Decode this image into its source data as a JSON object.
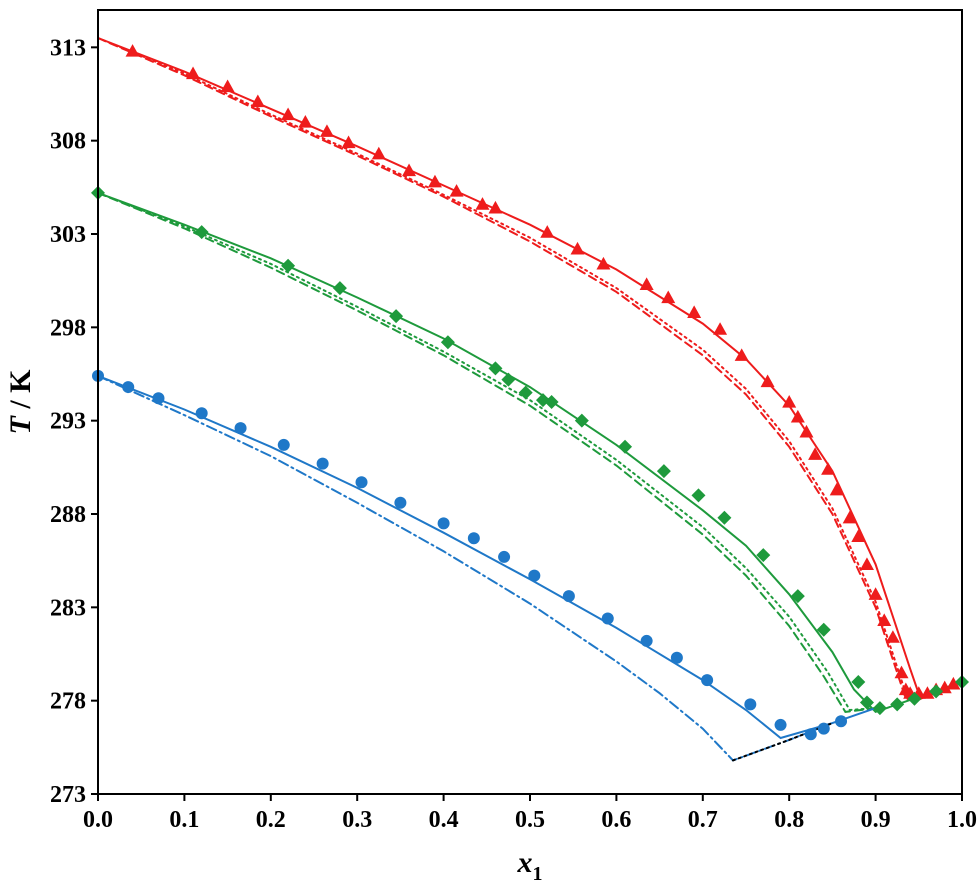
{
  "chart_data": {
    "type": "scatter",
    "xlabel": "x",
    "xlabel_sub": "1",
    "ylabel_italic": "T",
    "ylabel_rest": " / K",
    "xlim": [
      0.0,
      1.0
    ],
    "ylim": [
      273,
      315
    ],
    "xticks": [
      0.0,
      0.1,
      0.2,
      0.3,
      0.4,
      0.5,
      0.6,
      0.7,
      0.8,
      0.9,
      1.0
    ],
    "xtick_labels": [
      "0.0",
      "0.1",
      "0.2",
      "0.3",
      "0.4",
      "0.5",
      "0.6",
      "0.7",
      "0.8",
      "0.9",
      "1.0"
    ],
    "yticks": [
      273,
      278,
      283,
      288,
      293,
      298,
      303,
      308,
      313
    ],
    "ytick_labels": [
      "273",
      "278",
      "283",
      "288",
      "293",
      "298",
      "303",
      "308",
      "313"
    ],
    "grid": false,
    "legend": "none",
    "colors": {
      "red": "#ee1c1c",
      "green": "#1e9a3c",
      "blue": "#1f78c8",
      "black": "#000000"
    },
    "series": [
      {
        "marker": "triangle",
        "color": "#ee1c1c",
        "points": [
          [
            0.04,
            312.8
          ],
          [
            0.11,
            311.6
          ],
          [
            0.15,
            310.9
          ],
          [
            0.185,
            310.1
          ],
          [
            0.22,
            309.4
          ],
          [
            0.24,
            309.0
          ],
          [
            0.265,
            308.5
          ],
          [
            0.29,
            307.9
          ],
          [
            0.325,
            307.3
          ],
          [
            0.36,
            306.4
          ],
          [
            0.39,
            305.8
          ],
          [
            0.415,
            305.3
          ],
          [
            0.445,
            304.6
          ],
          [
            0.46,
            304.4
          ],
          [
            0.52,
            303.1
          ],
          [
            0.555,
            302.2
          ],
          [
            0.585,
            301.4
          ],
          [
            0.635,
            300.3
          ],
          [
            0.66,
            299.6
          ],
          [
            0.69,
            298.8
          ],
          [
            0.72,
            297.9
          ],
          [
            0.745,
            296.5
          ],
          [
            0.775,
            295.1
          ],
          [
            0.8,
            294.0
          ],
          [
            0.81,
            293.2
          ],
          [
            0.82,
            292.4
          ],
          [
            0.83,
            291.2
          ],
          [
            0.845,
            290.4
          ],
          [
            0.855,
            289.3
          ],
          [
            0.87,
            287.8
          ],
          [
            0.88,
            286.8
          ],
          [
            0.89,
            285.3
          ],
          [
            0.9,
            283.7
          ],
          [
            0.91,
            282.3
          ],
          [
            0.92,
            281.4
          ],
          [
            0.93,
            279.5
          ],
          [
            0.935,
            278.6
          ],
          [
            0.94,
            278.4
          ],
          [
            0.95,
            278.4
          ],
          [
            0.96,
            278.4
          ],
          [
            0.97,
            278.6
          ],
          [
            0.98,
            278.7
          ],
          [
            0.99,
            278.9
          ]
        ]
      },
      {
        "marker": "diamond",
        "color": "#1e9a3c",
        "points": [
          [
            0.0,
            305.2
          ],
          [
            0.12,
            303.1
          ],
          [
            0.22,
            301.3
          ],
          [
            0.28,
            300.1
          ],
          [
            0.345,
            298.6
          ],
          [
            0.405,
            297.2
          ],
          [
            0.46,
            295.8
          ],
          [
            0.475,
            295.2
          ],
          [
            0.495,
            294.5
          ],
          [
            0.515,
            294.1
          ],
          [
            0.525,
            294.0
          ],
          [
            0.56,
            293.0
          ],
          [
            0.61,
            291.6
          ],
          [
            0.655,
            290.3
          ],
          [
            0.695,
            289.0
          ],
          [
            0.725,
            287.8
          ],
          [
            0.77,
            285.8
          ],
          [
            0.81,
            283.6
          ],
          [
            0.84,
            281.8
          ],
          [
            0.88,
            279.0
          ],
          [
            0.89,
            277.9
          ],
          [
            0.905,
            277.6
          ],
          [
            0.925,
            277.8
          ],
          [
            0.945,
            278.1
          ],
          [
            0.97,
            278.5
          ],
          [
            1.0,
            279.0
          ]
        ]
      },
      {
        "marker": "circle",
        "color": "#1f78c8",
        "points": [
          [
            0.0,
            295.4
          ],
          [
            0.035,
            294.8
          ],
          [
            0.07,
            294.2
          ],
          [
            0.12,
            293.4
          ],
          [
            0.165,
            292.6
          ],
          [
            0.215,
            291.7
          ],
          [
            0.26,
            290.7
          ],
          [
            0.305,
            289.7
          ],
          [
            0.35,
            288.6
          ],
          [
            0.4,
            287.5
          ],
          [
            0.435,
            286.7
          ],
          [
            0.47,
            285.7
          ],
          [
            0.505,
            284.7
          ],
          [
            0.545,
            283.6
          ],
          [
            0.59,
            282.4
          ],
          [
            0.635,
            281.2
          ],
          [
            0.67,
            280.3
          ],
          [
            0.705,
            279.1
          ],
          [
            0.755,
            277.8
          ],
          [
            0.79,
            276.7
          ],
          [
            0.825,
            276.2
          ],
          [
            0.84,
            276.5
          ],
          [
            0.86,
            276.9
          ]
        ]
      }
    ],
    "model_curves": [
      {
        "color": "#ee1c1c",
        "dash": "solid",
        "points": [
          [
            0.0,
            313.5
          ],
          [
            0.1,
            311.7
          ],
          [
            0.2,
            309.7
          ],
          [
            0.3,
            307.7
          ],
          [
            0.4,
            305.6
          ],
          [
            0.5,
            303.5
          ],
          [
            0.6,
            301.1
          ],
          [
            0.7,
            298.2
          ],
          [
            0.75,
            296.3
          ],
          [
            0.8,
            293.8
          ],
          [
            0.85,
            290.3
          ],
          [
            0.9,
            285.3
          ],
          [
            0.94,
            279.7
          ],
          [
            0.952,
            278.1
          ],
          [
            0.97,
            278.5
          ],
          [
            1.0,
            279.0
          ]
        ]
      },
      {
        "color": "#ee1c1c",
        "dash": "dashed",
        "points": [
          [
            0.0,
            313.5
          ],
          [
            0.1,
            311.5
          ],
          [
            0.2,
            309.3
          ],
          [
            0.3,
            307.2
          ],
          [
            0.4,
            305.0
          ],
          [
            0.5,
            302.6
          ],
          [
            0.6,
            299.9
          ],
          [
            0.7,
            296.5
          ],
          [
            0.75,
            294.4
          ],
          [
            0.8,
            291.6
          ],
          [
            0.85,
            288.0
          ],
          [
            0.9,
            283.0
          ],
          [
            0.935,
            278.1
          ],
          [
            0.95,
            278.3
          ]
        ]
      },
      {
        "color": "#ee1c1c",
        "dash": "dotted",
        "points": [
          [
            0.0,
            313.5
          ],
          [
            0.1,
            311.6
          ],
          [
            0.2,
            309.4
          ],
          [
            0.3,
            307.3
          ],
          [
            0.4,
            305.1
          ],
          [
            0.5,
            302.8
          ],
          [
            0.6,
            300.1
          ],
          [
            0.7,
            296.8
          ],
          [
            0.75,
            294.7
          ],
          [
            0.8,
            291.9
          ],
          [
            0.85,
            288.3
          ],
          [
            0.9,
            283.3
          ],
          [
            0.937,
            278.1
          ],
          [
            0.95,
            278.3
          ]
        ]
      },
      {
        "color": "#1e9a3c",
        "dash": "solid",
        "points": [
          [
            0.0,
            305.2
          ],
          [
            0.1,
            303.5
          ],
          [
            0.2,
            301.7
          ],
          [
            0.3,
            299.6
          ],
          [
            0.4,
            297.4
          ],
          [
            0.5,
            294.8
          ],
          [
            0.6,
            291.7
          ],
          [
            0.7,
            288.2
          ],
          [
            0.75,
            286.3
          ],
          [
            0.8,
            283.7
          ],
          [
            0.85,
            280.6
          ],
          [
            0.875,
            278.6
          ],
          [
            0.9,
            277.4
          ],
          [
            0.95,
            278.2
          ],
          [
            1.0,
            279.0
          ]
        ]
      },
      {
        "color": "#1e9a3c",
        "dash": "dashed",
        "points": [
          [
            0.0,
            305.2
          ],
          [
            0.1,
            303.3
          ],
          [
            0.2,
            301.2
          ],
          [
            0.3,
            298.9
          ],
          [
            0.4,
            296.5
          ],
          [
            0.5,
            293.8
          ],
          [
            0.6,
            290.6
          ],
          [
            0.7,
            286.9
          ],
          [
            0.75,
            284.7
          ],
          [
            0.8,
            282.0
          ],
          [
            0.84,
            279.3
          ],
          [
            0.865,
            277.4
          ],
          [
            0.9,
            277.6
          ]
        ]
      },
      {
        "color": "#1e9a3c",
        "dash": "dotted",
        "points": [
          [
            0.0,
            305.2
          ],
          [
            0.1,
            303.4
          ],
          [
            0.2,
            301.4
          ],
          [
            0.3,
            299.1
          ],
          [
            0.4,
            296.7
          ],
          [
            0.5,
            294.1
          ],
          [
            0.6,
            290.9
          ],
          [
            0.7,
            287.3
          ],
          [
            0.75,
            285.1
          ],
          [
            0.8,
            282.5
          ],
          [
            0.845,
            279.5
          ],
          [
            0.87,
            277.5
          ],
          [
            0.9,
            277.6
          ]
        ]
      },
      {
        "color": "#1f78c8",
        "dash": "solid",
        "points": [
          [
            0.0,
            295.4
          ],
          [
            0.1,
            293.6
          ],
          [
            0.2,
            291.6
          ],
          [
            0.3,
            289.4
          ],
          [
            0.4,
            287.0
          ],
          [
            0.5,
            284.5
          ],
          [
            0.6,
            281.9
          ],
          [
            0.7,
            279.1
          ],
          [
            0.75,
            277.5
          ],
          [
            0.79,
            276.0
          ],
          [
            0.85,
            276.8
          ],
          [
            0.9,
            277.6
          ]
        ]
      },
      {
        "color": "#1f78c8",
        "dash": "dashdot",
        "points": [
          [
            0.0,
            295.4
          ],
          [
            0.1,
            293.3
          ],
          [
            0.2,
            291.1
          ],
          [
            0.3,
            288.6
          ],
          [
            0.4,
            286.0
          ],
          [
            0.5,
            283.2
          ],
          [
            0.6,
            280.1
          ],
          [
            0.65,
            278.4
          ],
          [
            0.7,
            276.5
          ],
          [
            0.735,
            274.8
          ],
          [
            0.8,
            275.9
          ],
          [
            0.85,
            276.8
          ]
        ]
      },
      {
        "color": "#000000",
        "dash": "dotted",
        "points": [
          [
            0.735,
            274.8
          ],
          [
            0.8,
            275.9
          ],
          [
            0.85,
            276.8
          ]
        ]
      }
    ]
  }
}
